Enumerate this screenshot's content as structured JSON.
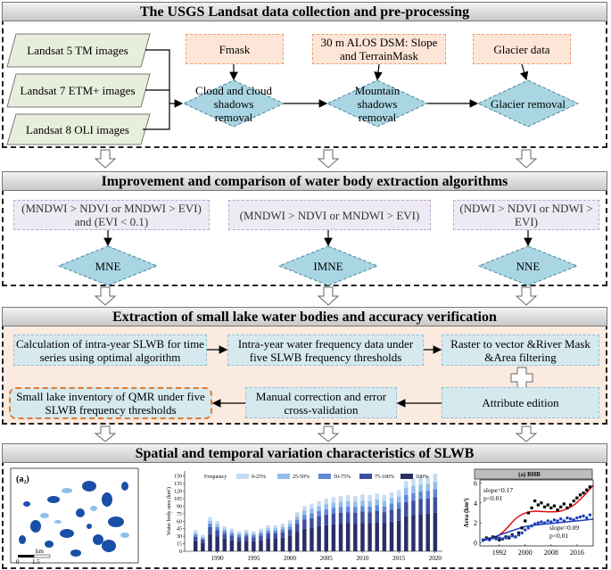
{
  "sections": [
    "The USGS Landsat  data collection and pre-processing",
    "Improvement and comparison of water body extraction algorithms",
    "Extraction of small lake water bodies and accuracy verification",
    "Spatial and temporal variation characteristics of SLWB"
  ],
  "landsat_images": [
    "Landsat 5 TM images",
    "Landsat 7 ETM+ images",
    "Landsat 8 OLI images"
  ],
  "auxiliary_data": [
    "Fmask",
    "30 m ALOS DSM: Slope and TerrainMask",
    "Glacier data"
  ],
  "preprocessing_steps": [
    "Cloud and cloud shadows removal",
    "Mountain shadows removal",
    "Glacier  removal"
  ],
  "index_rules": [
    "(MNDWI > NDVI or MNDWI > EVI) and (EVI < 0.1)",
    "(MNDWI > NDVI or MNDWI > EVI)",
    "(NDWI > NDVI or NDWI > EVI)"
  ],
  "algorithms": [
    "MNE",
    "IMNE",
    "NNE"
  ],
  "extraction_steps": [
    "Calculation of intra-year SLWB for time series using optimal algorithm",
    "Intra-year water frequency data under five SLWB frequency thresholds",
    "Raster to vector &River Mask &Area filtering",
    "Attribute edition",
    "Manual correction and error cross-validation",
    "Small lake inventory of QMR under five SLWB frequency thresholds"
  ],
  "map": {
    "label": "(a₂)",
    "scale_unit": "km",
    "scale_labels": [
      "0",
      "1.5"
    ]
  },
  "chart_data": [
    {
      "type": "bar",
      "stacked": true,
      "ylabel": "Water body area (km²)",
      "legend_title": "Frequency",
      "x": [
        1987,
        1988,
        1989,
        1990,
        1991,
        1992,
        1993,
        1994,
        1995,
        1996,
        1997,
        1998,
        1999,
        2000,
        2001,
        2002,
        2003,
        2004,
        2005,
        2006,
        2007,
        2008,
        2009,
        2010,
        2011,
        2012,
        2013,
        2014,
        2015,
        2016,
        2017,
        2018,
        2019,
        2020
      ],
      "xlim": [
        1985.5,
        2021
      ],
      "xticks": [
        1990,
        1995,
        2000,
        2005,
        2010,
        2015,
        2020
      ],
      "ylim": [
        0,
        160
      ],
      "yticks": [
        0,
        15,
        30,
        45,
        60,
        75,
        90,
        105,
        120,
        135,
        150
      ],
      "series": [
        {
          "name": "0-25%",
          "color": "#c4dcf3",
          "values": [
            5,
            4,
            7,
            6,
            5,
            5,
            4,
            5,
            4,
            5,
            6,
            6,
            6,
            7,
            8,
            9,
            10,
            10,
            11,
            11,
            11,
            12,
            11,
            12,
            12,
            12,
            12,
            12,
            13,
            14,
            15,
            15,
            15,
            16
          ]
        },
        {
          "name": "25-50%",
          "color": "#93bde9",
          "values": [
            4,
            3,
            6,
            6,
            5,
            4,
            4,
            4,
            4,
            4,
            5,
            5,
            5,
            6,
            7,
            9,
            9,
            10,
            10,
            10,
            11,
            11,
            11,
            11,
            11,
            11,
            11,
            11,
            12,
            14,
            14,
            14,
            15,
            15
          ]
        },
        {
          "name": "50-75%",
          "color": "#5f89d6",
          "values": [
            4,
            3,
            7,
            6,
            5,
            5,
            4,
            4,
            4,
            5,
            5,
            5,
            6,
            6,
            8,
            9,
            10,
            10,
            11,
            11,
            11,
            11,
            11,
            11,
            11,
            12,
            11,
            12,
            12,
            14,
            15,
            15,
            15,
            16
          ]
        },
        {
          "name": "75-100%",
          "color": "#3d4f9e",
          "values": [
            8,
            7,
            14,
            12,
            10,
            9,
            8,
            9,
            8,
            9,
            10,
            10,
            11,
            12,
            16,
            18,
            19,
            20,
            21,
            22,
            22,
            22,
            22,
            23,
            22,
            23,
            22,
            24,
            24,
            28,
            29,
            30,
            30,
            31
          ]
        },
        {
          "name": "100%",
          "color": "#2a2e66",
          "values": [
            21,
            16,
            34,
            30,
            25,
            22,
            20,
            21,
            20,
            22,
            26,
            26,
            27,
            31,
            39,
            45,
            47,
            50,
            52,
            54,
            55,
            56,
            55,
            56,
            56,
            57,
            56,
            59,
            61,
            70,
            72,
            74,
            75,
            77
          ]
        }
      ]
    },
    {
      "type": "scatter",
      "title": "(a)  BHB",
      "ylabel": "Area (km²)",
      "x": [
        1987,
        1988,
        1989,
        1990,
        1991,
        1992,
        1993,
        1994,
        1995,
        1996,
        1997,
        1998,
        1999,
        2000,
        2001,
        2002,
        2003,
        2004,
        2005,
        2006,
        2007,
        2008,
        2009,
        2010,
        2011,
        2012,
        2013,
        2014,
        2015,
        2016,
        2017,
        2018,
        2019,
        2020
      ],
      "xlim": [
        1986,
        2021
      ],
      "xticks": [
        1992,
        2000,
        2008,
        2016
      ],
      "ylim": [
        -0.3,
        6.3
      ],
      "yticks": [
        0,
        2,
        4,
        6
      ],
      "annotations": [
        "slope=0.17",
        "p<0.01",
        "slope=0.09",
        "p<0.01"
      ],
      "series": [
        {
          "color": "#000000",
          "marker": "square",
          "values": [
            0.3,
            0.5,
            0.4,
            0.6,
            0.5,
            0.3,
            0.4,
            0.6,
            0.5,
            0.8,
            0.6,
            1.0,
            1.5,
            2.2,
            3.0,
            3.5,
            4.2,
            3.8,
            4.0,
            3.6,
            3.8,
            3.5,
            3.7,
            3.3,
            3.6,
            3.9,
            3.5,
            3.8,
            4.2,
            4.5,
            4.8,
            5.0,
            5.3,
            5.6
          ]
        },
        {
          "color": "#1f3fbf",
          "marker": "circle",
          "values": [
            0.3,
            0.4,
            0.3,
            0.5,
            0.4,
            0.5,
            0.4,
            0.5,
            0.6,
            0.7,
            0.6,
            0.8,
            1.0,
            1.3,
            1.5,
            1.7,
            1.9,
            2.0,
            2.1,
            2.0,
            2.2,
            2.1,
            2.3,
            2.2,
            2.4,
            2.2,
            2.5,
            2.4,
            2.3,
            2.5,
            2.6,
            2.7,
            2.5,
            2.8
          ]
        }
      ]
    }
  ]
}
